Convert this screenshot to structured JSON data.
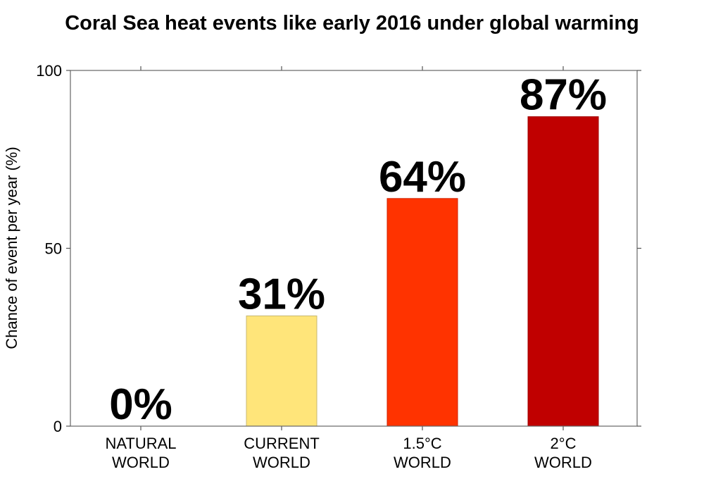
{
  "chart_data": {
    "type": "bar",
    "title": "Coral Sea heat events like early 2016 under global warming",
    "xlabel": "",
    "ylabel": "Chance of event per year (%)",
    "ylim": [
      0,
      100
    ],
    "yticks": [
      "0",
      "50",
      "100"
    ],
    "grid": false,
    "categories": [
      [
        "NATURAL",
        "WORLD"
      ],
      [
        "CURRENT",
        "WORLD"
      ],
      [
        "1.5°C",
        "WORLD"
      ],
      [
        "2°C",
        "WORLD"
      ]
    ],
    "values": [
      0,
      31,
      64,
      87
    ],
    "data_labels": [
      "0%",
      "31%",
      "64%",
      "87%"
    ],
    "colors": [
      "#ffffff",
      "#ffe57a",
      "#ff3300",
      "#c00000"
    ],
    "edge_colors": [
      "#ffffff",
      "#c8b870",
      "#d02000",
      "#a00000"
    ]
  }
}
